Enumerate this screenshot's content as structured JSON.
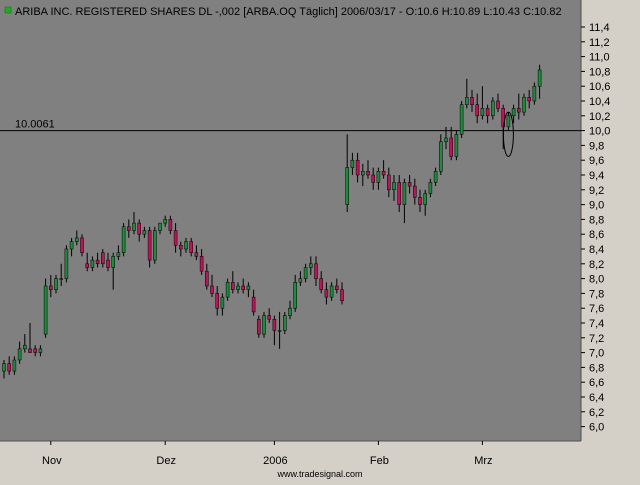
{
  "header": {
    "text": "ARIBA INC. REGISTERED SHARES DL -,002 [ARBA.OQ  Täglich] 2006/03/17 - O:10.6 H:10.89 L:10.43 C:10.82"
  },
  "footer": {
    "watermark": "www.tradesignal.com"
  },
  "colors": {
    "plot_background": "#808080",
    "frame_background": "#d4d0c8",
    "up_candle": "#1e8c3c",
    "down_candle": "#c0145a",
    "wick": "#000000",
    "reference_line": "#000000",
    "indicator_square": "#22aa22"
  },
  "chart_data": {
    "type": "candlestick",
    "title": "ARIBA INC. REGISTERED SHARES DL -,002 [ARBA.OQ  Täglich] 2006/03/17 - O:10.6 H:10.89 L:10.43 C:10.82",
    "last_bar": {
      "open": 10.6,
      "high": 10.89,
      "low": 10.43,
      "close": 10.82
    },
    "ylim": [
      5.8,
      11.5
    ],
    "y_ticks": [
      "11,4",
      "11,2",
      "11,0",
      "10,8",
      "10,6",
      "10,4",
      "10,2",
      "10,0",
      "9,8",
      "9,6",
      "9,4",
      "9,2",
      "9,0",
      "8,8",
      "8,6",
      "8,4",
      "8,2",
      "8,0",
      "7,8",
      "7,6",
      "7,4",
      "7,2",
      "7,0",
      "6,8",
      "6,6",
      "6,4",
      "6,2",
      "6,0"
    ],
    "x_labels": [
      {
        "label": "Nov",
        "bar": 9
      },
      {
        "label": "Dez",
        "bar": 31
      },
      {
        "label": "2006",
        "bar": 52
      },
      {
        "label": "Feb",
        "bar": 72
      },
      {
        "label": "Mrz",
        "bar": 92
      }
    ],
    "reference_line": {
      "value": 10.0,
      "label": "10.0061"
    },
    "ellipse_marker": {
      "bar": 97,
      "y_center": 9.95,
      "y_half_height": 0.3
    },
    "candles": [
      [
        6.75,
        6.9,
        6.65,
        6.85
      ],
      [
        6.85,
        6.95,
        6.7,
        6.75
      ],
      [
        6.75,
        6.95,
        6.7,
        6.9
      ],
      [
        6.9,
        7.15,
        6.85,
        7.05
      ],
      [
        7.05,
        7.25,
        7.0,
        7.1
      ],
      [
        7.05,
        7.4,
        7.0,
        7.0
      ],
      [
        7.05,
        7.1,
        6.95,
        7.0
      ],
      [
        7.0,
        7.1,
        6.95,
        7.05
      ],
      [
        7.25,
        8.0,
        7.2,
        7.9
      ],
      [
        7.9,
        8.05,
        7.75,
        7.85
      ],
      [
        7.85,
        8.05,
        7.8,
        8.0
      ],
      [
        8.0,
        8.2,
        7.9,
        8.0
      ],
      [
        8.0,
        8.45,
        7.95,
        8.4
      ],
      [
        8.4,
        8.55,
        8.3,
        8.5
      ],
      [
        8.5,
        8.65,
        8.45,
        8.55
      ],
      [
        8.55,
        8.6,
        8.3,
        8.35
      ],
      [
        8.2,
        8.35,
        8.1,
        8.15
      ],
      [
        8.15,
        8.3,
        8.1,
        8.25
      ],
      [
        8.25,
        8.35,
        8.15,
        8.2
      ],
      [
        8.35,
        8.4,
        8.15,
        8.2
      ],
      [
        8.25,
        8.35,
        8.1,
        8.15
      ],
      [
        8.15,
        8.35,
        7.85,
        8.3
      ],
      [
        8.3,
        8.45,
        8.25,
        8.35
      ],
      [
        8.35,
        8.75,
        8.3,
        8.7
      ],
      [
        8.7,
        8.8,
        8.55,
        8.65
      ],
      [
        8.65,
        8.9,
        8.6,
        8.75
      ],
      [
        8.75,
        8.8,
        8.5,
        8.6
      ],
      [
        8.6,
        8.7,
        8.55,
        8.65
      ],
      [
        8.65,
        8.7,
        8.15,
        8.25
      ],
      [
        8.25,
        8.7,
        8.2,
        8.65
      ],
      [
        8.65,
        8.75,
        8.6,
        8.75
      ],
      [
        8.75,
        8.85,
        8.7,
        8.8
      ],
      [
        8.8,
        8.85,
        8.6,
        8.65
      ],
      [
        8.65,
        8.75,
        8.35,
        8.45
      ],
      [
        8.45,
        8.5,
        8.3,
        8.4
      ],
      [
        8.4,
        8.55,
        8.35,
        8.5
      ],
      [
        8.5,
        8.55,
        8.3,
        8.35
      ],
      [
        8.35,
        8.45,
        8.25,
        8.3
      ],
      [
        8.3,
        8.4,
        8.05,
        8.1
      ],
      [
        8.1,
        8.2,
        7.85,
        7.9
      ],
      [
        7.9,
        8.05,
        7.75,
        7.8
      ],
      [
        7.8,
        7.9,
        7.5,
        7.6
      ],
      [
        7.6,
        7.8,
        7.5,
        7.75
      ],
      [
        7.75,
        8.0,
        7.7,
        7.95
      ],
      [
        7.95,
        8.1,
        7.8,
        7.85
      ],
      [
        7.85,
        7.95,
        7.8,
        7.9
      ],
      [
        7.9,
        8.0,
        7.8,
        7.85
      ],
      [
        7.85,
        7.95,
        7.75,
        7.9
      ],
      [
        7.75,
        7.85,
        7.5,
        7.55
      ],
      [
        7.45,
        7.5,
        7.2,
        7.25
      ],
      [
        7.25,
        7.55,
        7.2,
        7.5
      ],
      [
        7.5,
        7.6,
        7.4,
        7.45
      ],
      [
        7.45,
        7.5,
        7.1,
        7.3
      ],
      [
        7.3,
        7.55,
        7.05,
        7.3
      ],
      [
        7.3,
        7.55,
        7.25,
        7.5
      ],
      [
        7.5,
        7.7,
        7.45,
        7.6
      ],
      [
        7.6,
        8.05,
        7.55,
        7.95
      ],
      [
        7.95,
        8.1,
        7.9,
        8.0
      ],
      [
        8.0,
        8.2,
        7.95,
        8.15
      ],
      [
        8.15,
        8.3,
        8.05,
        8.2
      ],
      [
        8.2,
        8.3,
        7.9,
        8.0
      ],
      [
        8.0,
        8.1,
        7.8,
        7.85
      ],
      [
        7.85,
        7.95,
        7.65,
        7.75
      ],
      [
        7.75,
        7.95,
        7.7,
        7.9
      ],
      [
        7.9,
        8.0,
        7.8,
        7.85
      ],
      [
        7.85,
        7.95,
        7.65,
        7.7
      ],
      [
        9.0,
        9.95,
        8.9,
        9.5
      ],
      [
        9.5,
        9.7,
        9.4,
        9.6
      ],
      [
        9.6,
        9.7,
        9.3,
        9.4
      ],
      [
        9.4,
        9.55,
        9.25,
        9.45
      ],
      [
        9.45,
        9.6,
        9.35,
        9.4
      ],
      [
        9.4,
        9.5,
        9.2,
        9.3
      ],
      [
        9.3,
        9.5,
        9.2,
        9.45
      ],
      [
        9.45,
        9.6,
        9.35,
        9.4
      ],
      [
        9.4,
        9.5,
        9.1,
        9.2
      ],
      [
        9.2,
        9.4,
        9.05,
        9.3
      ],
      [
        9.3,
        9.4,
        8.9,
        9.0
      ],
      [
        9.0,
        9.35,
        8.75,
        9.3
      ],
      [
        9.3,
        9.4,
        9.15,
        9.25
      ],
      [
        9.25,
        9.35,
        9.0,
        9.1
      ],
      [
        9.1,
        9.2,
        8.9,
        9.0
      ],
      [
        9.0,
        9.2,
        8.85,
        9.15
      ],
      [
        9.15,
        9.35,
        9.1,
        9.3
      ],
      [
        9.3,
        9.5,
        9.25,
        9.45
      ],
      [
        9.45,
        9.95,
        9.4,
        9.85
      ],
      [
        9.85,
        10.05,
        9.75,
        9.9
      ],
      [
        9.9,
        10.05,
        9.6,
        9.65
      ],
      [
        9.65,
        10.0,
        9.6,
        9.95
      ],
      [
        9.95,
        10.4,
        9.9,
        10.35
      ],
      [
        10.35,
        10.7,
        10.3,
        10.45
      ],
      [
        10.45,
        10.55,
        10.25,
        10.35
      ],
      [
        10.35,
        10.5,
        10.1,
        10.2
      ],
      [
        10.2,
        10.6,
        10.15,
        10.3
      ],
      [
        10.3,
        10.35,
        10.1,
        10.2
      ],
      [
        10.2,
        10.45,
        10.15,
        10.4
      ],
      [
        10.4,
        10.5,
        10.25,
        10.3
      ],
      [
        10.3,
        10.35,
        9.75,
        10.05
      ],
      [
        10.05,
        10.25,
        10.0,
        10.2
      ],
      [
        10.2,
        10.35,
        10.1,
        10.3
      ],
      [
        10.3,
        10.5,
        10.15,
        10.25
      ],
      [
        10.25,
        10.5,
        10.2,
        10.45
      ],
      [
        10.45,
        10.55,
        10.3,
        10.4
      ],
      [
        10.4,
        10.65,
        10.35,
        10.6
      ],
      [
        10.6,
        10.89,
        10.43,
        10.82
      ]
    ]
  }
}
